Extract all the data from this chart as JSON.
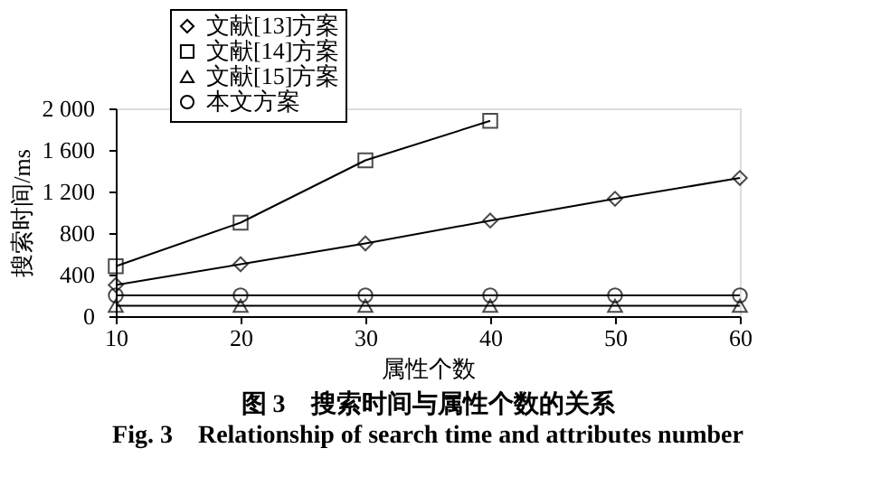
{
  "chart_data": {
    "type": "line",
    "title": "图 3　搜索时间与属性个数的关系",
    "subtitle": "Fig. 3　Relationship of search time and attributes number",
    "xlabel": "属性个数",
    "ylabel": "搜索时间/ms",
    "x": [
      10,
      20,
      30,
      40,
      50,
      60
    ],
    "series": [
      {
        "name": "文献[13]方案",
        "color": "#000000",
        "marker": "diamond",
        "values": [
          300,
          500,
          700,
          920,
          1130,
          1330
        ]
      },
      {
        "name": "文献[14]方案",
        "color": "#000000",
        "marker": "square",
        "values": [
          480,
          900,
          1500,
          1880,
          null,
          null
        ]
      },
      {
        "name": "文献[15]方案",
        "color": "#000000",
        "marker": "triangle",
        "values": [
          100,
          100,
          100,
          100,
          100,
          100
        ]
      },
      {
        "name": "本文方案",
        "color": "#000000",
        "marker": "circle",
        "values": [
          200,
          200,
          200,
          200,
          200,
          200
        ]
      }
    ],
    "xlim": [
      10,
      60
    ],
    "xticks": [
      10,
      20,
      30,
      40,
      50,
      60
    ],
    "ylim": [
      0,
      2000
    ],
    "yticks": [
      0,
      400,
      800,
      {
        "value": 1200,
        "label": "1 200"
      },
      {
        "value": 1600,
        "label": "1 600"
      },
      {
        "value": 2000,
        "label": "2 000"
      }
    ],
    "grid": false,
    "legend": "top left",
    "line_style": "solid"
  }
}
